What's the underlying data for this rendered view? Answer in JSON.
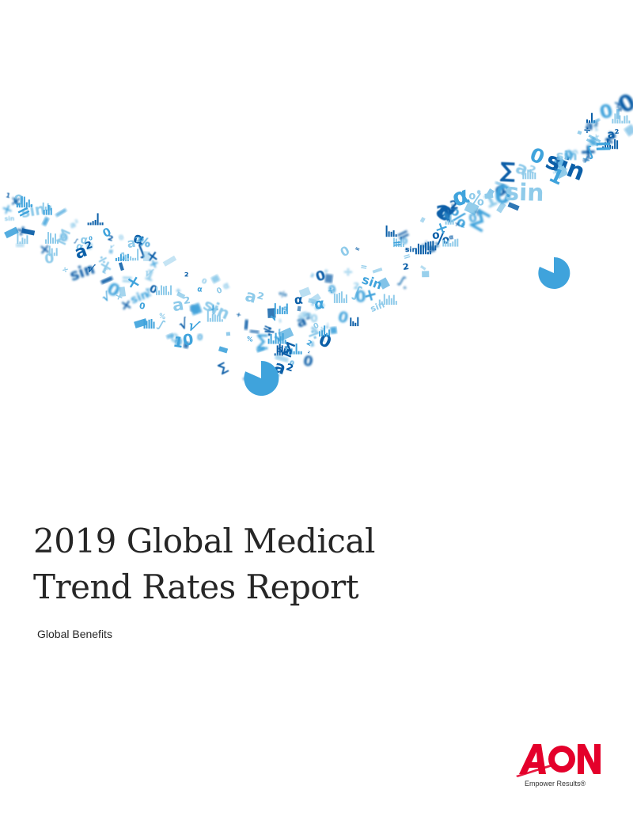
{
  "cover": {
    "title_line1": "2019 Global Medical",
    "title_line2": "Trend Rates Report",
    "subtitle": "Global Benefits"
  },
  "brand": {
    "logo_text": "AON",
    "tagline": "Empower Results®",
    "color": "#e4002b"
  },
  "artwork": {
    "description_icon": "floating-math-symbols-icon",
    "color_light": "#8fcbea",
    "color_mid": "#3fa3dc",
    "color_dark": "#0b5fa8"
  }
}
